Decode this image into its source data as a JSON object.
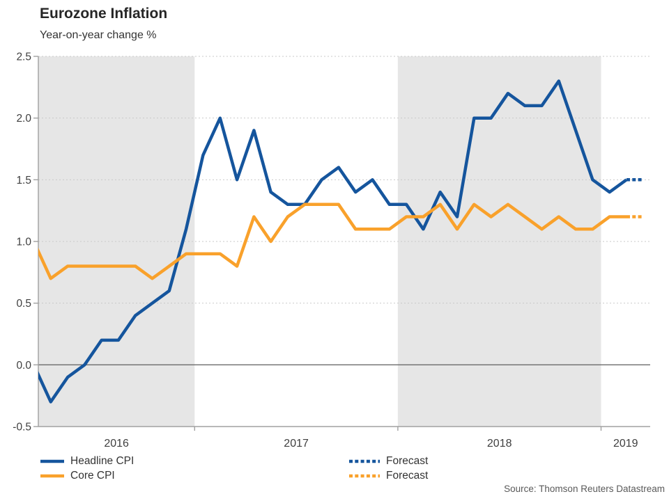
{
  "header": {
    "title": "Eurozone Inflation",
    "subtitle": "Year-on-year change %"
  },
  "legend": {
    "headline_label": "Headline CPI",
    "core_label": "Core CPI",
    "forecast_headline_label": "Forecast",
    "forecast_core_label": "Forecast"
  },
  "source": "Source: Thomson Reuters Datastream",
  "colors": {
    "headline": "#15559D",
    "core": "#F9A12B",
    "band": "#E6E6E6",
    "gridline": "#C9C9C9",
    "zero_line": "#6B6B6B",
    "axis": "#A0A0A0",
    "tick_label": "#3F3F3F"
  },
  "chart_data": {
    "type": "line",
    "title": "Eurozone Inflation",
    "subtitle": "Year-on-year change %",
    "ylabel": "Year-on-year change %",
    "ylim": [
      -0.5,
      2.5
    ],
    "ytick_step": 0.5,
    "yticks": [
      "2.5",
      "2.0",
      "1.5",
      "1.0",
      "0.5",
      "0.0",
      "-0.5"
    ],
    "x_year_labels": [
      "2016",
      "2017",
      "2018",
      "2019"
    ],
    "shaded_years": [
      "2016",
      "2018"
    ],
    "grid": "dotted horizontal gridlines; alternating gray year bands; solid line at 0.0",
    "legend_position": "bottom",
    "months": [
      "2016-03",
      "2016-04",
      "2016-05",
      "2016-06",
      "2016-07",
      "2016-08",
      "2016-09",
      "2016-10",
      "2016-11",
      "2016-12",
      "2017-01",
      "2017-02",
      "2017-03",
      "2017-04",
      "2017-05",
      "2017-06",
      "2017-07",
      "2017-08",
      "2017-09",
      "2017-10",
      "2017-11",
      "2017-12",
      "2018-01",
      "2018-02",
      "2018-03",
      "2018-04",
      "2018-05",
      "2018-06",
      "2018-07",
      "2018-08",
      "2018-09",
      "2018-10",
      "2018-11",
      "2018-12",
      "2019-01",
      "2019-02"
    ],
    "forecast_months": [
      "2019-03"
    ],
    "series": [
      {
        "name": "Headline CPI",
        "color_key": "headline",
        "values": [
          0.0,
          -0.3,
          -0.1,
          0.0,
          0.2,
          0.2,
          0.4,
          0.5,
          0.6,
          1.1,
          1.7,
          2.0,
          1.5,
          1.9,
          1.4,
          1.3,
          1.3,
          1.5,
          1.6,
          1.4,
          1.5,
          1.3,
          1.3,
          1.1,
          1.4,
          1.2,
          2.0,
          2.0,
          2.2,
          2.1,
          2.1,
          2.3,
          1.9,
          1.5,
          1.4,
          1.5
        ],
        "forecast_values": [
          1.5
        ]
      },
      {
        "name": "Core CPI",
        "color_key": "core",
        "values": [
          1.0,
          0.7,
          0.8,
          0.8,
          0.8,
          0.8,
          0.8,
          0.7,
          0.8,
          0.9,
          0.9,
          0.9,
          0.8,
          1.2,
          1.0,
          1.2,
          1.3,
          1.3,
          1.3,
          1.1,
          1.1,
          1.1,
          1.2,
          1.2,
          1.3,
          1.1,
          1.3,
          1.2,
          1.3,
          1.2,
          1.1,
          1.2,
          1.1,
          1.1,
          1.2,
          1.2
        ],
        "forecast_values": [
          1.2
        ]
      }
    ],
    "note": "First month (2016-03) is clipped at the left plot edge"
  }
}
